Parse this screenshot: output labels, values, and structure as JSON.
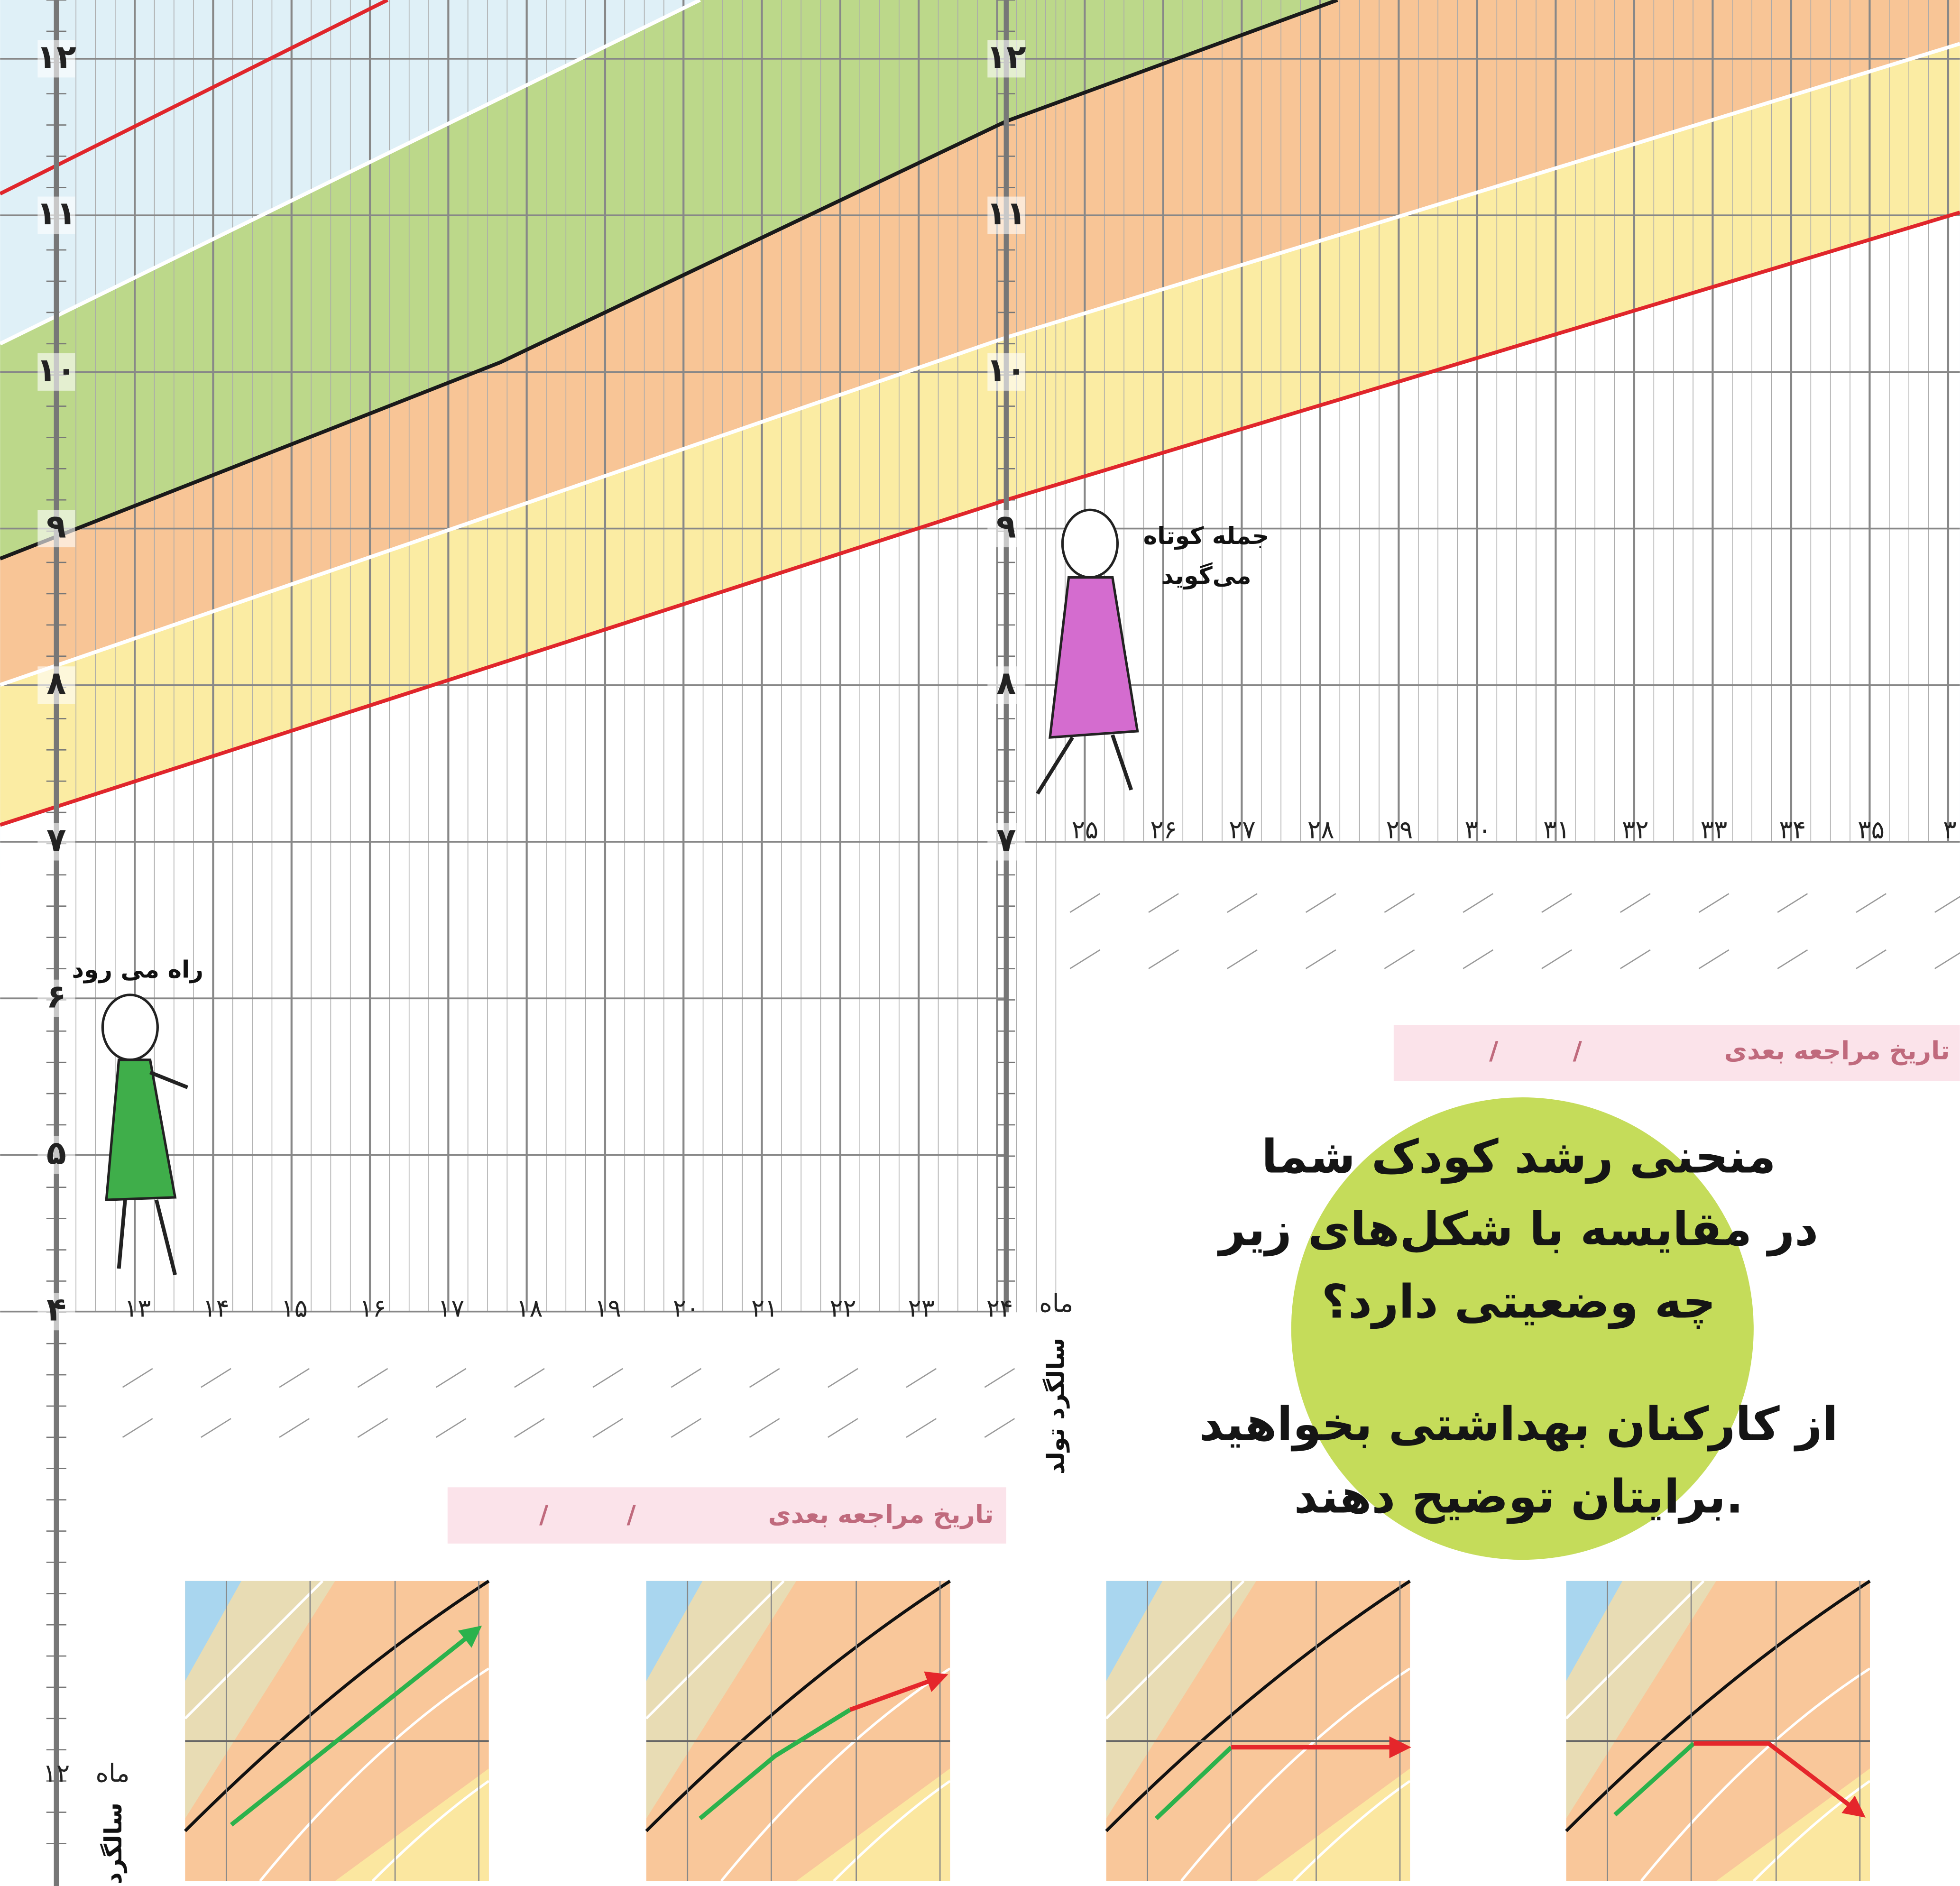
{
  "left_chart": {
    "y_labels": [
      "۱۲",
      "۱۱",
      "۱۰",
      "۹",
      "۸",
      "۷",
      "۶",
      "۵",
      "۴"
    ],
    "x_labels": [
      "۱۳",
      "۱۴",
      "۱۵",
      "۱۶",
      "۱۷",
      "۱۸",
      "۱۹",
      "۲۰",
      "۲۱",
      "۲۲",
      "۲۳",
      "۲۴"
    ],
    "month_label": "ماه",
    "birthday_label": "سالگرد تولد",
    "next_visit": "تاریخ مراجعه بعدی",
    "date_separator": "/",
    "milestone": "راه می رود"
  },
  "right_chart": {
    "y_labels": [
      "۱۲",
      "۱۱",
      "۱۰",
      "۹",
      "۸",
      "۷"
    ],
    "x_labels": [
      "۲۵",
      "۲۶",
      "۲۷",
      "۲۸",
      "۲۹",
      "۳۰",
      "۳۱",
      "۳۲",
      "۳۳",
      "۳۴",
      "۳۵",
      "۳"
    ],
    "next_visit": "تاریخ مراجعه بعدی",
    "date_separator": "/",
    "milestone": [
      "جمله کوتاه",
      "می‌گوید"
    ]
  },
  "message": {
    "question": [
      "منحنی رشد کودک شما",
      "در مقایسه با شکل‌های زیر",
      "چه وضعیتی دارد؟"
    ],
    "advice": [
      "از کارکنان بهداشتی بخواهید",
      "برایتان توضیح دهند."
    ]
  },
  "bottom_left": {
    "month_number": "۱۲",
    "month_label": "ماه",
    "birthday_label": "سالگرد"
  }
}
